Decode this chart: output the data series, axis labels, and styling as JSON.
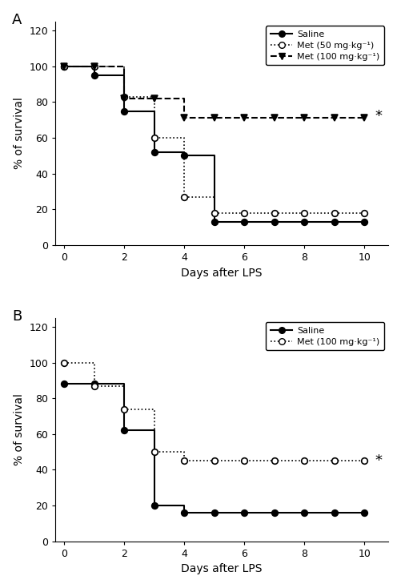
{
  "panel_A": {
    "saline": {
      "x": [
        0,
        1,
        2,
        3,
        4,
        5,
        6,
        7,
        8,
        9,
        10
      ],
      "y": [
        100,
        95,
        75,
        52,
        50,
        13,
        13,
        13,
        13,
        13,
        13
      ],
      "style": "solid",
      "marker": "o",
      "fillstyle": "full",
      "label": "Saline"
    },
    "met50": {
      "x": [
        0,
        1,
        2,
        3,
        4,
        5,
        6,
        7,
        8,
        9,
        10
      ],
      "y": [
        100,
        100,
        83,
        60,
        27,
        18,
        18,
        18,
        18,
        18,
        18
      ],
      "style": "dotted",
      "marker": "o",
      "fillstyle": "none",
      "label": "Met (50 mg·kg⁻¹)"
    },
    "met100": {
      "x": [
        0,
        1,
        2,
        3,
        4,
        5,
        6,
        7,
        8,
        9,
        10
      ],
      "y": [
        100,
        100,
        82,
        82,
        71,
        71,
        71,
        71,
        71,
        71,
        71
      ],
      "style": "dashed",
      "marker": "v",
      "fillstyle": "full",
      "label": "Met (100 mg·kg⁻¹)"
    }
  },
  "panel_B": {
    "saline": {
      "x": [
        0,
        1,
        2,
        3,
        4,
        5,
        6,
        7,
        8,
        9,
        10
      ],
      "y": [
        88,
        88,
        62,
        20,
        16,
        16,
        16,
        16,
        16,
        16,
        16
      ],
      "style": "solid",
      "marker": "o",
      "fillstyle": "full",
      "label": "Saline"
    },
    "met100": {
      "x": [
        0,
        1,
        2,
        3,
        4,
        5,
        6,
        7,
        8,
        9,
        10
      ],
      "y": [
        100,
        87,
        74,
        50,
        45,
        45,
        45,
        45,
        45,
        45,
        45
      ],
      "style": "dotted",
      "marker": "o",
      "fillstyle": "none",
      "label": "Met (100 mg·kg⁻¹)"
    }
  },
  "ylim": [
    0,
    125
  ],
  "xlim": [
    -0.3,
    10.8
  ],
  "yticks": [
    0,
    20,
    40,
    60,
    80,
    100,
    120
  ],
  "xticks": [
    0,
    2,
    4,
    6,
    8,
    10
  ],
  "xlabel": "Days after LPS",
  "ylabel": "% of survival",
  "color": "black",
  "linewidth": 1.5,
  "markersize": 5.5,
  "dotted_linewidth": 1.2,
  "asterisk_A_y": 72,
  "asterisk_B_y": 45,
  "asterisk_x": 10.35
}
